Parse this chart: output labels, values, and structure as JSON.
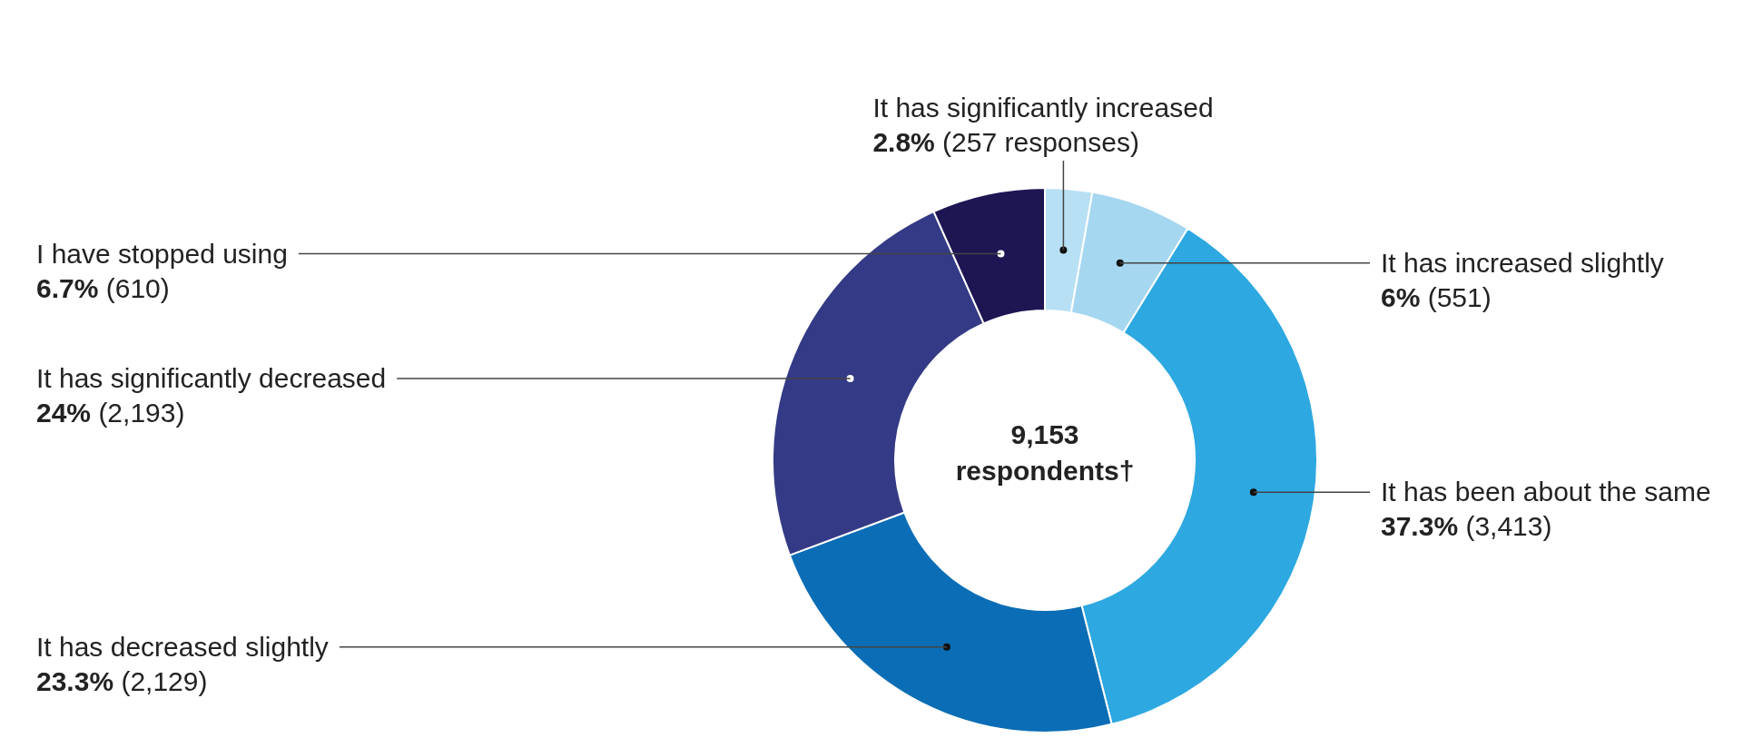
{
  "chart_data": {
    "type": "donut",
    "categories": [
      "It has significantly increased",
      "It has increased slightly",
      "It has been about the same",
      "It has decreased slightly",
      "It has significantly decreased",
      "I have stopped using"
    ],
    "values": [
      2.8,
      6,
      37.3,
      23.3,
      24,
      6.7
    ],
    "value_labels": [
      "2.8% (257 responses)",
      "6% (551)",
      "37.3% (3,413)",
      "23.3% (2,129)",
      "24% (2,193)",
      "6.7% (610)"
    ],
    "colors": [
      "#b8e0f4",
      "#a6d7f0",
      "#2da8e1",
      "#0b6db5",
      "#343a85",
      "#1d1653"
    ],
    "annotations": [
      "9,153 respondents†"
    ],
    "legend": false
  }
}
